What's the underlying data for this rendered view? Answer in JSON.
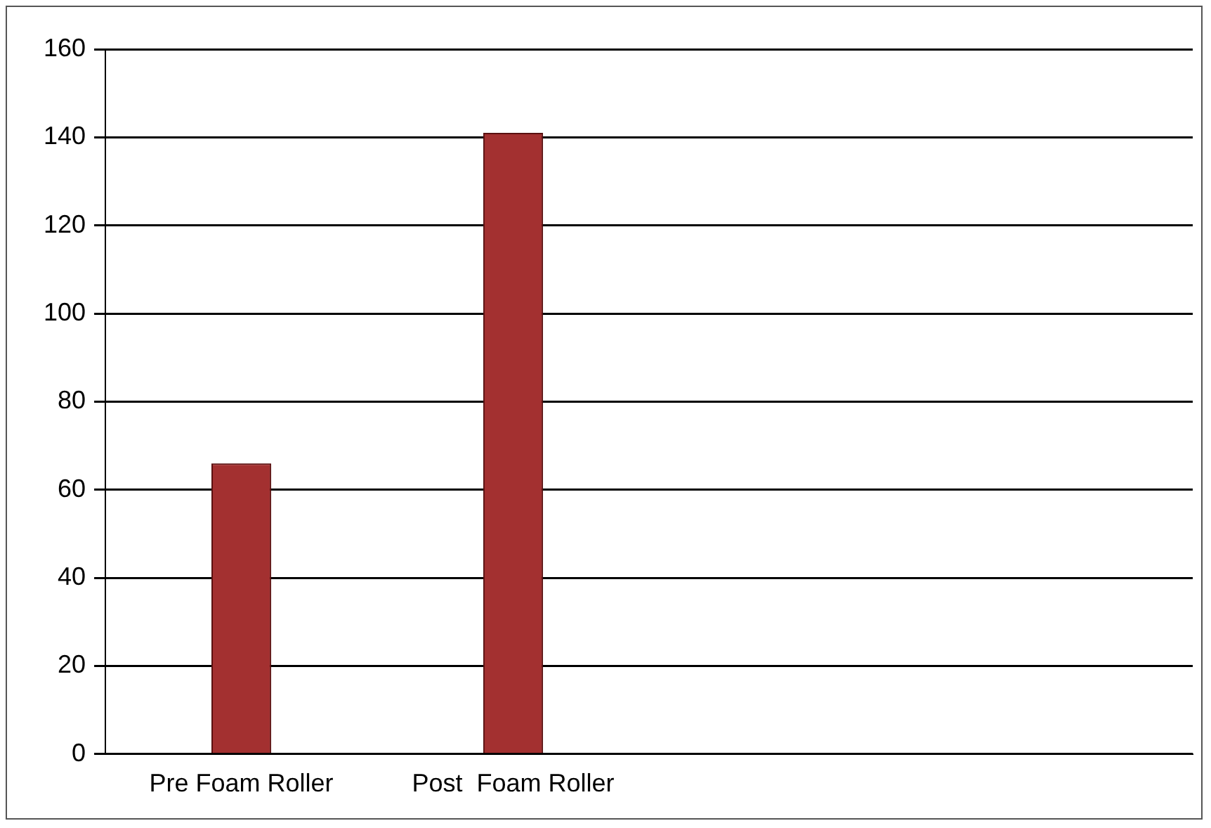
{
  "chart_data": {
    "type": "bar",
    "categories": [
      "Pre Foam Roller",
      "Post  Foam Roller",
      null,
      null
    ],
    "values": [
      66,
      141,
      null,
      null
    ],
    "color": "#a33030",
    "ylim": [
      0,
      160
    ],
    "yticks": [
      0,
      20,
      40,
      60,
      80,
      100,
      120,
      140,
      160
    ],
    "grid": "y",
    "legend": false
  }
}
